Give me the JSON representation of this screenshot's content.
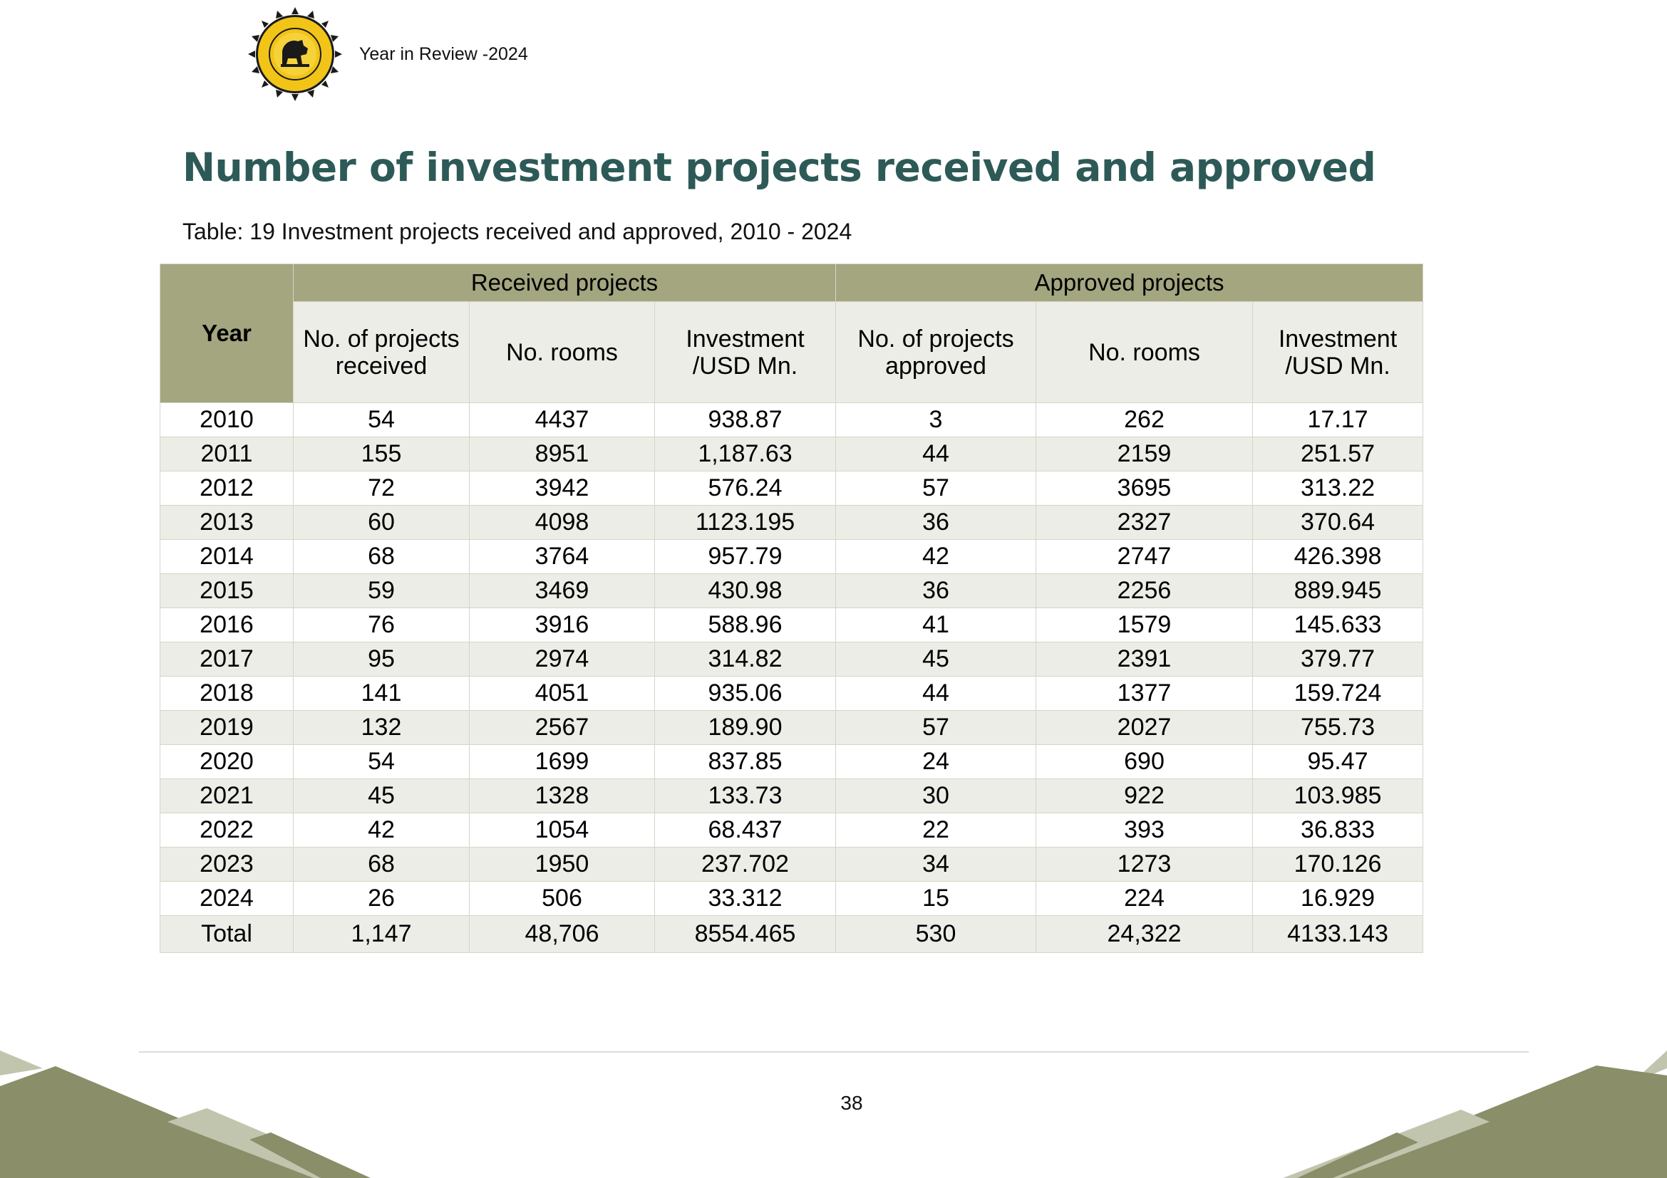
{
  "header": {
    "logo": "sltda-lion-seal-logo",
    "text": "Year in Review -2024"
  },
  "title": "Number of investment projects received and approved",
  "caption": "Table: 19 Investment projects received and approved, 2010 - 2024",
  "table": {
    "group_headers": {
      "year": "Year",
      "received": "Received projects",
      "approved": "Approved projects"
    },
    "sub_headers": {
      "received_projects": [
        "No. of projects",
        "received"
      ],
      "received_rooms": "No. rooms",
      "received_investment": [
        "Investment",
        "/USD Mn."
      ],
      "approved_projects": [
        "No. of projects",
        "approved"
      ],
      "approved_rooms": "No. rooms",
      "approved_investment": [
        "Investment",
        "/USD Mn."
      ]
    },
    "rows": [
      [
        "2010",
        "54",
        "4437",
        "938.87",
        "3",
        "262",
        "17.17"
      ],
      [
        "2011",
        "155",
        "8951",
        "1,187.63",
        "44",
        "2159",
        "251.57"
      ],
      [
        "2012",
        "72",
        "3942",
        "576.24",
        "57",
        "3695",
        "313.22"
      ],
      [
        "2013",
        "60",
        "4098",
        "1123.195",
        "36",
        "2327",
        "370.64"
      ],
      [
        "2014",
        "68",
        "3764",
        "957.79",
        "42",
        "2747",
        "426.398"
      ],
      [
        "2015",
        "59",
        "3469",
        "430.98",
        "36",
        "2256",
        "889.945"
      ],
      [
        "2016",
        "76",
        "3916",
        "588.96",
        "41",
        "1579",
        "145.633"
      ],
      [
        "2017",
        "95",
        "2974",
        "314.82",
        "45",
        "2391",
        "379.77"
      ],
      [
        "2018",
        "141",
        "4051",
        "935.06",
        "44",
        "1377",
        "159.724"
      ],
      [
        "2019",
        "132",
        "2567",
        "189.90",
        "57",
        "2027",
        "755.73"
      ],
      [
        "2020",
        "54",
        "1699",
        "837.85",
        "24",
        "690",
        "95.47"
      ],
      [
        "2021",
        "45",
        "1328",
        "133.73",
        "30",
        "922",
        "103.985"
      ],
      [
        "2022",
        "42",
        "1054",
        "68.437",
        "22",
        "393",
        "36.833"
      ],
      [
        "2023",
        "68",
        "1950",
        "237.702",
        "34",
        "1273",
        "170.126"
      ],
      [
        "2024",
        "26",
        "506",
        "33.312",
        "15",
        "224",
        "16.929"
      ]
    ],
    "total": [
      "Total",
      "1,147",
      "48,706",
      "8554.465",
      "530",
      "24,322",
      "4133.143"
    ]
  },
  "footer": {
    "page_number": "38"
  },
  "colors": {
    "title": "#2d5a57",
    "header_band": "#a3a67f",
    "row_alt": "#ecede6",
    "mountain_dark": "#8a8e69",
    "mountain_light": "#c2c5ad"
  }
}
